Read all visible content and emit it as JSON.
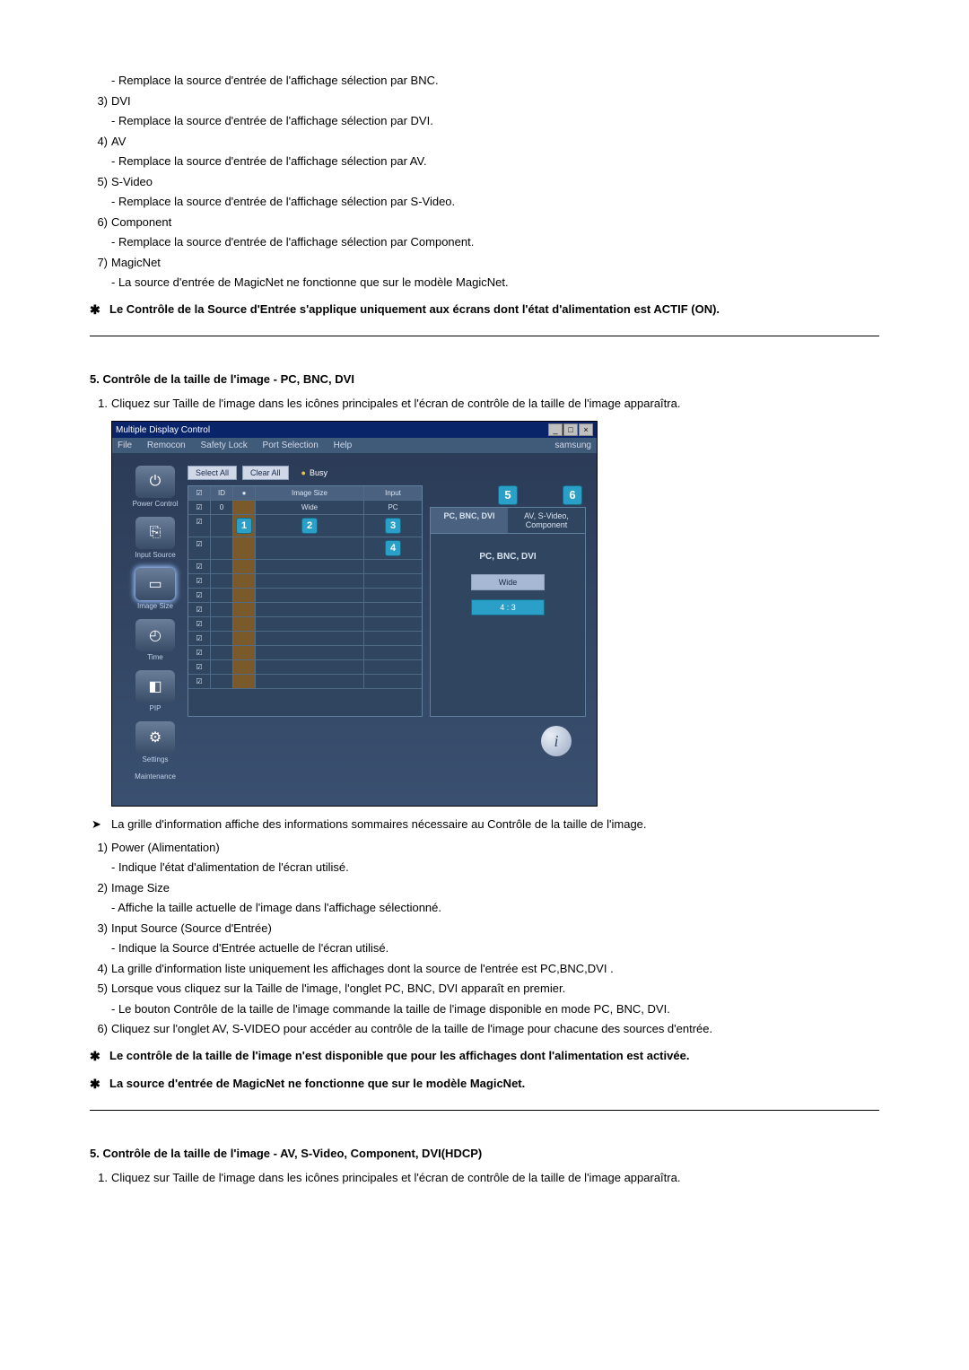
{
  "top_items": [
    {
      "desc": "- Remplace la source d'entrée de l'affichage sélection par BNC."
    },
    {
      "num": "3)",
      "label": "DVI",
      "desc": "- Remplace la source d'entrée de l'affichage sélection par DVI."
    },
    {
      "num": "4)",
      "label": "AV",
      "desc": "- Remplace la source d'entrée de l'affichage sélection par AV."
    },
    {
      "num": "5)",
      "label": "S-Video",
      "desc": "- Remplace la source d'entrée de l'affichage sélection par S-Video."
    },
    {
      "num": "6)",
      "label": "Component",
      "desc": "- Remplace la source d'entrée de l'affichage sélection par Component."
    },
    {
      "num": "7)",
      "label": "MagicNet",
      "desc": "- La source d'entrée de MagicNet ne fonctionne que sur le modèle MagicNet."
    }
  ],
  "top_note": "Le Contrôle de la Source d'Entrée s'applique uniquement aux écrans dont l'état d'alimentation est ACTIF (ON).",
  "section5": {
    "title": "5. Contrôle de la taille de l'image - PC, BNC, DVI",
    "intro_num": "1.",
    "intro": "Cliquez sur Taille de l'image dans les icônes principales et l'écran de contrôle de la taille de l'image apparaîtra."
  },
  "screenshot": {
    "title": "Multiple Display Control",
    "menu": [
      "File",
      "Remocon",
      "Safety Lock",
      "Port Selection",
      "Help"
    ],
    "brand": "samsung",
    "buttons": {
      "select_all": "Select All",
      "clear_all": "Clear All",
      "busy": "Busy"
    },
    "sidebar": [
      {
        "label": "Power Control",
        "glyph": "⏻"
      },
      {
        "label": "Input Source",
        "glyph": "⎘"
      },
      {
        "label": "Image Size",
        "glyph": "▭",
        "active": true
      },
      {
        "label": "Time",
        "glyph": "◴"
      },
      {
        "label": "PIP",
        "glyph": "◧"
      },
      {
        "label": "Settings",
        "glyph": "⚙"
      },
      {
        "label": "Maintenance",
        "glyph": ""
      }
    ],
    "grid": {
      "headers": [
        "☑",
        "ID",
        "●",
        "Image Size",
        "Input"
      ],
      "row1": [
        "☑",
        "0",
        "",
        "Wide",
        "PC"
      ],
      "blank_rows": 11
    },
    "callouts": {
      "c1": "1",
      "c2": "2",
      "c3": "3",
      "c4": "4",
      "c5": "5",
      "c6": "6"
    },
    "tabs": {
      "t1": "PC, BNC, DVI",
      "t2": "AV, S-Video, Component"
    },
    "panel": {
      "label": "PC, BNC, DVI",
      "btn1": "Wide",
      "btn2": "4 : 3"
    }
  },
  "after_bullet": "La grille d'information affiche des informations sommaires nécessaire au Contrôle de la taille de l'image.",
  "after_items": [
    {
      "num": "1)",
      "label": "Power (Alimentation)",
      "desc": "- Indique l'état d'alimentation de l'écran utilisé."
    },
    {
      "num": "2)",
      "label": "Image Size",
      "desc": "- Affiche la taille actuelle de l'image dans l'affichage sélectionné."
    },
    {
      "num": "3)",
      "label": "Input Source (Source d'Entrée)",
      "desc": "- Indique la Source d'Entrée actuelle de l'écran utilisé."
    },
    {
      "num": "4)",
      "label": "La grille d'information liste uniquement les affichages dont la source de l'entrée est PC,BNC,DVI ."
    },
    {
      "num": "5)",
      "label": "Lorsque vous cliquez sur la Taille de l'image, l'onglet PC, BNC, DVI apparaît en premier.",
      "desc": "- Le bouton Contrôle de la taille de l'image commande la taille de l'image disponible en mode PC, BNC, DVI."
    },
    {
      "num": "6)",
      "label": "Cliquez sur l'onglet AV, S-VIDEO pour accéder au contrôle de la taille de l'image pour chacune des sources d'entrée."
    }
  ],
  "after_notes": [
    "Le contrôle de la taille de l'image n'est disponible que pour les affichages dont l'alimentation est activée.",
    "La source d'entrée de MagicNet ne fonctionne que sur le modèle MagicNet."
  ],
  "section5b": {
    "title": "5. Contrôle de la taille de l'image - AV, S-Video, Component, DVI(HDCP)",
    "intro_num": "1.",
    "intro": "Cliquez sur Taille de l'image dans les icônes principales et l'écran de contrôle de la taille de l'image apparaîtra."
  }
}
